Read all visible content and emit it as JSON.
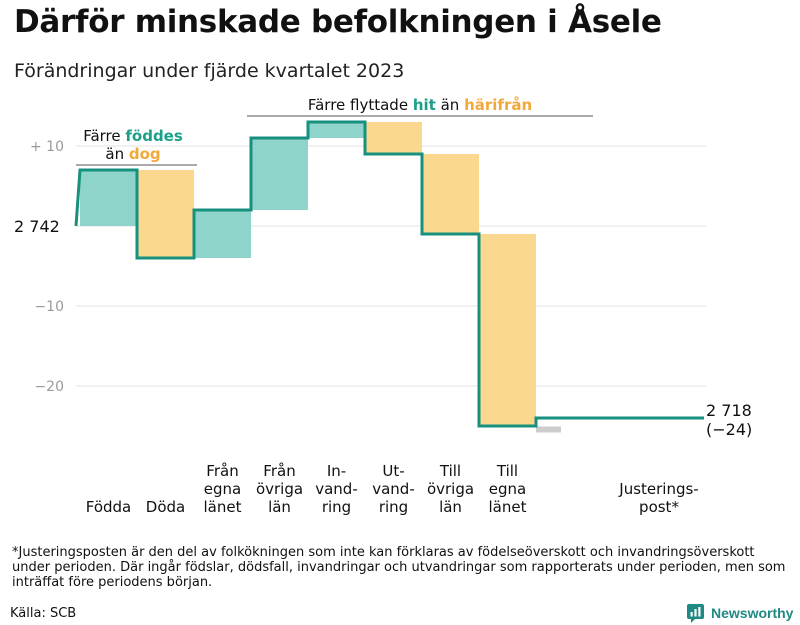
{
  "title": "Därför minskade befolkningen i Åsele",
  "subtitle": "Förändringar under fjärde kvartalet 2023",
  "footnote": "*Justeringsposten är den del av folkökningen som inte kan förklaras av födelseöverskott och invandringsöverskott under perioden. Där ingår födslar, dödsfall, invandringar och utvandringar som rapporterats under perioden, men som inträffat före periodens början.",
  "source": "Källa: SCB",
  "brand": "Newsworthy",
  "colors": {
    "positive": "#8fd4ca",
    "negative": "#fbd890",
    "adjustment": "#cccccc",
    "line": "#17917f",
    "green_text": "#1aa088",
    "orange_text": "#f2a83a"
  },
  "chart_data": {
    "type": "waterfall",
    "start_value": 2742,
    "start_label": "2 742",
    "end_value": 2718,
    "end_label": "2 718",
    "end_change_label": "(−24)",
    "y_ticks": [
      {
        "value": 10,
        "label": "+  10"
      },
      {
        "value": -10,
        "label": "−10"
      },
      {
        "value": -20,
        "label": "−20"
      }
    ],
    "ylim": [
      -28,
      14
    ],
    "categories": [
      {
        "label": [
          "Födda"
        ],
        "change": 7
      },
      {
        "label": [
          "Döda"
        ],
        "change": -11
      },
      {
        "label": [
          "Från",
          "egna",
          "länet"
        ],
        "change": 6
      },
      {
        "label": [
          "Från",
          "övriga",
          "län"
        ],
        "change": 9
      },
      {
        "label": [
          "In-",
          "vand-",
          "ring"
        ],
        "change": 2
      },
      {
        "label": [
          "Ut-",
          "vand-",
          "ring"
        ],
        "change": -4
      },
      {
        "label": [
          "Till",
          "övriga",
          "län"
        ],
        "change": -10
      },
      {
        "label": [
          "Till",
          "egna",
          "länet"
        ],
        "change": -24
      },
      {
        "label": [
          "Justerings-",
          "post*"
        ],
        "change": 1
      }
    ],
    "annotations": {
      "births": {
        "line1_prefix": "Färre ",
        "line1_highlight": "föddes",
        "line2_prefix": "än ",
        "line2_highlight": "dog"
      },
      "migration": {
        "prefix": "Färre flyttade ",
        "highlight1": "hit",
        "middle": " än ",
        "highlight2": "härifrån"
      }
    }
  }
}
